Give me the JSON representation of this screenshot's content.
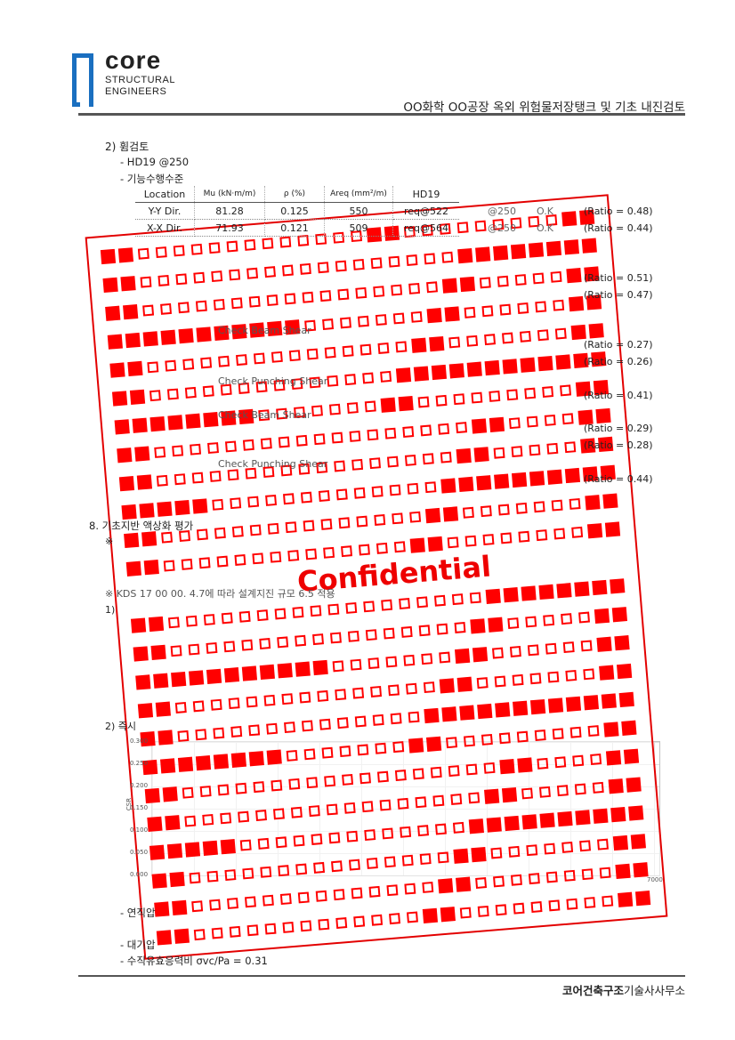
{
  "header": {
    "logo": {
      "word": "core",
      "line1": "STRUCTURAL",
      "line2": "ENGINEERS"
    },
    "title": "OO화학 OO공장 옥외 위험물저장탱크 및 기초 내진검토"
  },
  "section": {
    "heading": "2) 휨검토",
    "rebar": "- HD19    @250",
    "level": "- 기능수행수준",
    "table": {
      "headers": [
        "Location",
        "Mu (kN·m/m)",
        "ρ (%)",
        "Areq (mm²/m)",
        "HD19"
      ],
      "rows": [
        [
          "Y-Y Dir.",
          "81.28",
          "0.125",
          "550",
          "req@522"
        ],
        [
          "X-X Dir.",
          "71.93",
          "0.121",
          "509",
          "req@564"
        ]
      ],
      "extra": [
        {
          "spacing": "@250",
          "status": "O.K"
        },
        {
          "spacing": "@250",
          "status": "O.K"
        }
      ]
    },
    "ratios": [
      "(Ratio  =  0.48)",
      "(Ratio  =  0.44)",
      "(Ratio  =  0.51)",
      "(Ratio  =  0.47)",
      "(Ratio  =  0.27)",
      "(Ratio  =  0.26)",
      "(Ratio  =  0.41)",
      "(Ratio  =  0.29)",
      "(Ratio  =  0.28)",
      "(Ratio  =  0.44)"
    ],
    "shear_labels": [
      "Check Beam Shear",
      "Check Punching Shear",
      "Check Beam Shear",
      "Check Punching Shear"
    ]
  },
  "section8": {
    "heading": "8. 기초지반 액상화 평가",
    "note1": "※",
    "note2": "※ KDS 17 00 00. 4.7에 따라 설계지진 규모 6.5 적용",
    "item1": "1)",
    "item2": "2) 즉시",
    "item_bullets": [
      "- 연직압",
      "- 대기압"
    ],
    "stress_ratio": "- 수직유효응력비 σvc/Pa  =  0.31"
  },
  "chart": {
    "ylabel": "CSR",
    "yticks": [
      "0.300",
      "0.250",
      "0.200",
      "0.150",
      "0.100",
      "0.050",
      "0.000"
    ],
    "xtick_last": "7000"
  },
  "stamp": {
    "text": "Confidential",
    "color": "#ff0000"
  },
  "footer": {
    "company_bold": "코어건축구조",
    "company_rest": "기술사사무소"
  },
  "colors": {
    "brand": "#1a6fc0",
    "stamp": "#ff0000"
  }
}
